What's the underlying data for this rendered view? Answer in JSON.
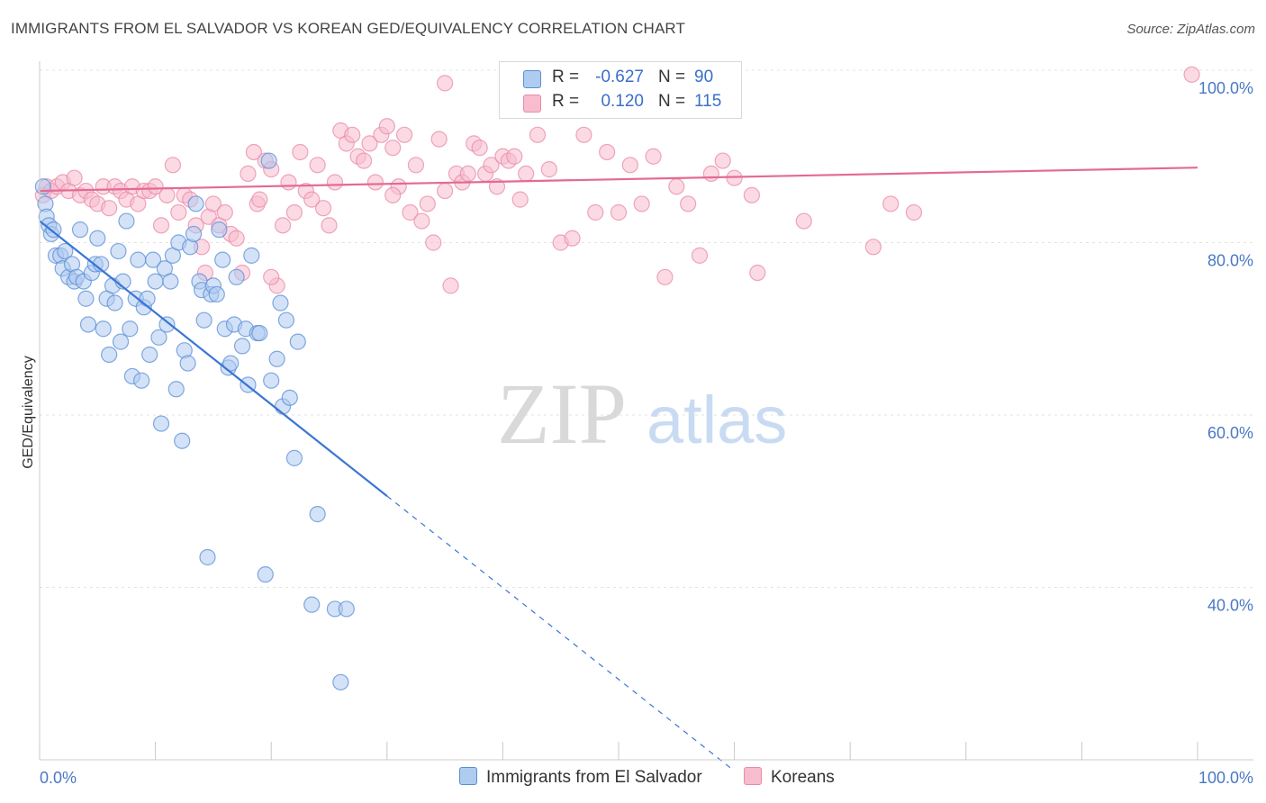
{
  "header": {
    "title": "IMMIGRANTS FROM EL SALVADOR VS KOREAN GED/EQUIVALENCY CORRELATION CHART",
    "source": "Source: ZipAtlas.com"
  },
  "legend": {
    "series1": {
      "r_label": "R =",
      "r_value": "-0.627",
      "n_label": "N =",
      "n_value": "90"
    },
    "series2": {
      "r_label": "R =",
      "r_value": "0.120",
      "n_label": "N =",
      "n_value": "115"
    }
  },
  "bottom_legend": {
    "series1": "Immigrants from El Salvador",
    "series2": "Koreans"
  },
  "watermark": {
    "zip": "ZIP",
    "atlas": "atlas"
  },
  "colors": {
    "series1_fill": "#aecbf0",
    "series1_stroke": "#5b8ed6",
    "series1_line": "#3a75d4",
    "series2_fill": "#f7bccd",
    "series2_stroke": "#e88aa8",
    "series2_line": "#e46a93",
    "tick_text": "#4a78c4",
    "grid": "#e3e3e3"
  },
  "chart_data": {
    "type": "scatter",
    "title": "IMMIGRANTS FROM EL SALVADOR VS KOREAN GED/EQUIVALENCY CORRELATION CHART",
    "xlabel": "",
    "ylabel": "GED/Equivalency",
    "xlim": [
      0,
      100
    ],
    "ylim": [
      20,
      100
    ],
    "y_ticks": [
      40,
      60,
      80,
      100
    ],
    "y_tick_labels": [
      "40.0%",
      "60.0%",
      "80.0%",
      "100.0%"
    ],
    "x_tick_labels": {
      "min": "0.0%",
      "max": "100.0%"
    },
    "grid": true,
    "series": [
      {
        "name": "Immigrants from El Salvador",
        "r": -0.627,
        "n": 90,
        "trend": {
          "x0": 0,
          "y0": 82.5,
          "x1": 30,
          "y1": 50.6,
          "dashed_to_x": 60,
          "dashed_to_y": 18.7
        },
        "points": [
          [
            0.3,
            86.5
          ],
          [
            0.5,
            84.5
          ],
          [
            0.6,
            83.0
          ],
          [
            0.8,
            82.0
          ],
          [
            1.0,
            81.0
          ],
          [
            1.2,
            81.5
          ],
          [
            1.4,
            78.5
          ],
          [
            1.8,
            78.5
          ],
          [
            2.0,
            77.0
          ],
          [
            2.2,
            79.0
          ],
          [
            2.5,
            76.0
          ],
          [
            2.8,
            77.5
          ],
          [
            3.0,
            75.5
          ],
          [
            3.2,
            76.0
          ],
          [
            3.5,
            81.5
          ],
          [
            3.8,
            75.5
          ],
          [
            4.0,
            73.5
          ],
          [
            4.2,
            70.5
          ],
          [
            4.5,
            76.5
          ],
          [
            4.8,
            77.5
          ],
          [
            5.0,
            80.5
          ],
          [
            5.3,
            77.5
          ],
          [
            5.5,
            70.0
          ],
          [
            5.8,
            73.5
          ],
          [
            6.0,
            67.0
          ],
          [
            6.3,
            75.0
          ],
          [
            6.5,
            73.0
          ],
          [
            6.8,
            79.0
          ],
          [
            7.0,
            68.5
          ],
          [
            7.2,
            75.5
          ],
          [
            7.5,
            82.5
          ],
          [
            7.8,
            70.0
          ],
          [
            8.0,
            64.5
          ],
          [
            8.3,
            73.5
          ],
          [
            8.5,
            78.0
          ],
          [
            8.8,
            64.0
          ],
          [
            9.0,
            72.5
          ],
          [
            9.3,
            73.5
          ],
          [
            9.5,
            67.0
          ],
          [
            9.8,
            78.0
          ],
          [
            10.0,
            75.5
          ],
          [
            10.3,
            69.0
          ],
          [
            10.5,
            59.0
          ],
          [
            10.8,
            77.0
          ],
          [
            11.0,
            70.5
          ],
          [
            11.3,
            75.5
          ],
          [
            11.5,
            78.5
          ],
          [
            11.8,
            63.0
          ],
          [
            12.0,
            80.0
          ],
          [
            12.3,
            57.0
          ],
          [
            12.5,
            67.5
          ],
          [
            12.8,
            66.0
          ],
          [
            13.0,
            79.5
          ],
          [
            13.3,
            81.0
          ],
          [
            13.5,
            84.5
          ],
          [
            13.8,
            75.5
          ],
          [
            14.0,
            74.5
          ],
          [
            14.2,
            71.0
          ],
          [
            14.5,
            43.5
          ],
          [
            14.8,
            74.0
          ],
          [
            15.0,
            75.0
          ],
          [
            15.3,
            74.0
          ],
          [
            15.5,
            81.5
          ],
          [
            15.8,
            78.0
          ],
          [
            16.0,
            70.0
          ],
          [
            16.3,
            65.5
          ],
          [
            16.5,
            66.0
          ],
          [
            16.8,
            70.5
          ],
          [
            17.0,
            76.0
          ],
          [
            17.5,
            68.0
          ],
          [
            17.8,
            70.0
          ],
          [
            18.0,
            63.5
          ],
          [
            18.3,
            78.5
          ],
          [
            18.8,
            69.5
          ],
          [
            19.0,
            69.5
          ],
          [
            19.5,
            41.5
          ],
          [
            19.8,
            89.5
          ],
          [
            20.0,
            64.0
          ],
          [
            20.5,
            66.5
          ],
          [
            20.8,
            73.0
          ],
          [
            21.0,
            61.0
          ],
          [
            21.3,
            71.0
          ],
          [
            21.6,
            62.0
          ],
          [
            22.0,
            55.0
          ],
          [
            22.3,
            68.5
          ],
          [
            23.5,
            38.0
          ],
          [
            24.0,
            48.5
          ],
          [
            25.5,
            37.5
          ],
          [
            26.0,
            29.0
          ],
          [
            26.5,
            37.5
          ]
        ]
      },
      {
        "name": "Koreans",
        "r": 0.12,
        "n": 115,
        "trend": {
          "x0": 0,
          "y0": 86.0,
          "x1": 100,
          "y1": 88.7
        },
        "points": [
          [
            0.3,
            85.5
          ],
          [
            0.6,
            86.5
          ],
          [
            1.0,
            86.0
          ],
          [
            1.5,
            86.5
          ],
          [
            2.0,
            87.0
          ],
          [
            2.5,
            86.0
          ],
          [
            3.0,
            87.5
          ],
          [
            3.5,
            85.5
          ],
          [
            4.0,
            86.0
          ],
          [
            4.5,
            85.0
          ],
          [
            5.0,
            84.5
          ],
          [
            5.5,
            86.5
          ],
          [
            6.0,
            84.0
          ],
          [
            6.5,
            86.5
          ],
          [
            7.0,
            86.0
          ],
          [
            7.5,
            85.0
          ],
          [
            8.0,
            86.5
          ],
          [
            8.5,
            84.5
          ],
          [
            9.0,
            86.0
          ],
          [
            9.5,
            86.0
          ],
          [
            10.0,
            86.5
          ],
          [
            10.5,
            82.0
          ],
          [
            11.0,
            85.5
          ],
          [
            11.5,
            89.0
          ],
          [
            12.0,
            83.5
          ],
          [
            12.5,
            85.5
          ],
          [
            13.0,
            85.0
          ],
          [
            13.5,
            82.0
          ],
          [
            14.0,
            79.5
          ],
          [
            14.3,
            76.5
          ],
          [
            14.6,
            83.0
          ],
          [
            15.0,
            84.5
          ],
          [
            15.5,
            82.0
          ],
          [
            16.0,
            83.5
          ],
          [
            16.5,
            81.0
          ],
          [
            17.0,
            80.5
          ],
          [
            17.5,
            76.5
          ],
          [
            18.0,
            88.0
          ],
          [
            18.5,
            90.5
          ],
          [
            18.8,
            84.5
          ],
          [
            19.0,
            85.0
          ],
          [
            19.5,
            89.5
          ],
          [
            20.0,
            88.5
          ],
          [
            20.5,
            75.0
          ],
          [
            21.0,
            82.0
          ],
          [
            21.5,
            87.0
          ],
          [
            22.0,
            83.5
          ],
          [
            22.5,
            90.5
          ],
          [
            23.0,
            86.0
          ],
          [
            23.5,
            85.0
          ],
          [
            24.0,
            89.0
          ],
          [
            24.5,
            84.0
          ],
          [
            25.0,
            82.0
          ],
          [
            25.5,
            87.0
          ],
          [
            26.0,
            93.0
          ],
          [
            26.5,
            91.5
          ],
          [
            27.0,
            92.5
          ],
          [
            27.5,
            90.0
          ],
          [
            28.0,
            89.5
          ],
          [
            28.5,
            91.5
          ],
          [
            29.0,
            87.0
          ],
          [
            29.5,
            92.5
          ],
          [
            30.0,
            93.5
          ],
          [
            30.5,
            91.0
          ],
          [
            31.0,
            86.5
          ],
          [
            31.5,
            92.5
          ],
          [
            32.0,
            83.5
          ],
          [
            32.5,
            89.0
          ],
          [
            33.0,
            82.5
          ],
          [
            33.5,
            84.5
          ],
          [
            34.0,
            80.0
          ],
          [
            34.5,
            92.0
          ],
          [
            35.0,
            86.0
          ],
          [
            35.5,
            75.0
          ],
          [
            36.0,
            88.0
          ],
          [
            36.5,
            87.0
          ],
          [
            37.0,
            88.0
          ],
          [
            37.5,
            91.5
          ],
          [
            38.0,
            91.0
          ],
          [
            38.5,
            88.0
          ],
          [
            39.0,
            89.0
          ],
          [
            39.5,
            86.5
          ],
          [
            40.0,
            90.0
          ],
          [
            40.5,
            89.5
          ],
          [
            41.0,
            90.0
          ],
          [
            41.5,
            85.0
          ],
          [
            42.0,
            88.0
          ],
          [
            43.0,
            92.5
          ],
          [
            44.0,
            88.5
          ],
          [
            45.0,
            80.0
          ],
          [
            46.0,
            80.5
          ],
          [
            47.0,
            92.5
          ],
          [
            48.0,
            83.5
          ],
          [
            49.0,
            90.5
          ],
          [
            50.0,
            83.5
          ],
          [
            51.0,
            89.0
          ],
          [
            52.0,
            84.5
          ],
          [
            53.0,
            90.0
          ],
          [
            54.0,
            76.0
          ],
          [
            55.0,
            86.5
          ],
          [
            56.0,
            84.5
          ],
          [
            57.0,
            78.5
          ],
          [
            58.0,
            88.0
          ],
          [
            59.0,
            89.5
          ],
          [
            60.0,
            87.5
          ],
          [
            61.5,
            85.5
          ],
          [
            62.0,
            76.5
          ],
          [
            66.0,
            82.5
          ],
          [
            72.0,
            79.5
          ],
          [
            73.5,
            84.5
          ],
          [
            75.5,
            83.5
          ],
          [
            99.5,
            99.5
          ],
          [
            35.0,
            98.5
          ],
          [
            30.5,
            85.5
          ],
          [
            20.0,
            76.0
          ]
        ]
      }
    ]
  }
}
